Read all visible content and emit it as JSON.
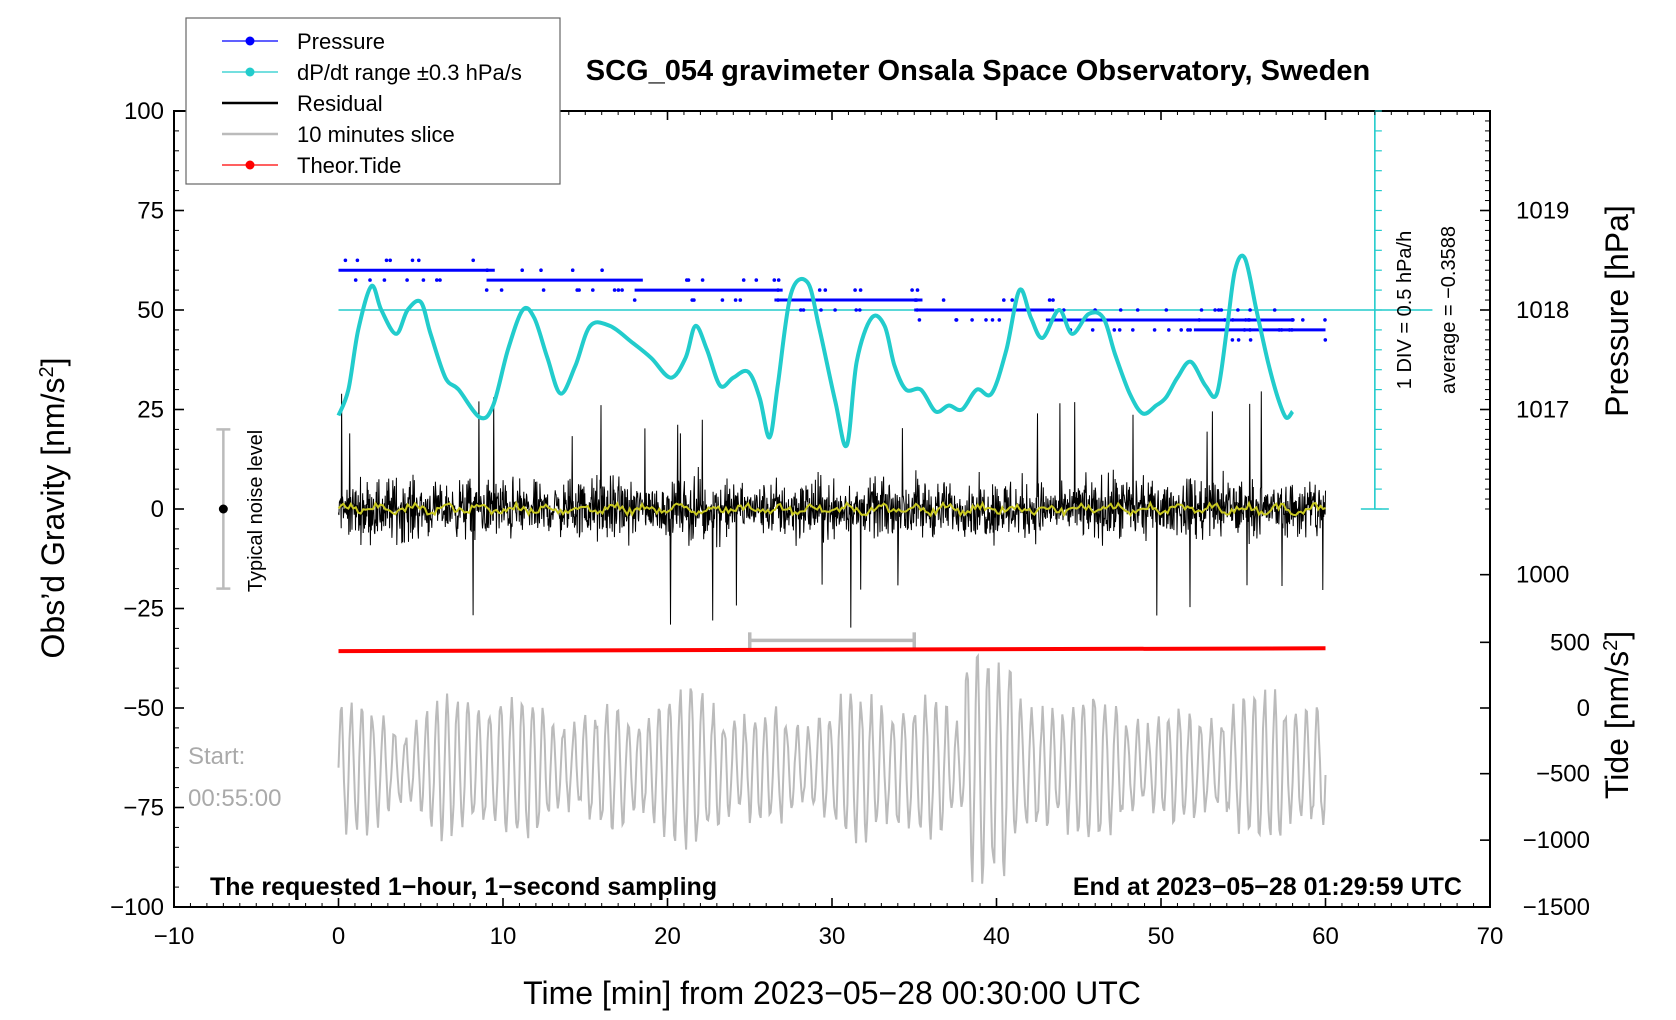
{
  "chart_data": {
    "type": "line",
    "title": "SCG_054 gravimeter Onsala Space Observatory, Sweden",
    "xlabel": "Time [min] from 2023−05−28 00:30:00 UTC",
    "ylabel_left": "Obs’d Gravity [nm/s²]",
    "ylabel_left_main": "Obs’d Gravity [nm/s",
    "ylabel_left_sup": "2",
    "ylabel_left_end": "]",
    "ylabel_right_pressure": "Pressure [hPa]",
    "ylabel_right_tide": "Tide [nm/s²]",
    "ylabel_right_tide_main": "Tide [nm/s",
    "ylabel_right_tide_sup": "2",
    "ylabel_right_tide_end": "]",
    "xlim": [
      -10,
      70
    ],
    "ylim_left": [
      -100,
      100
    ],
    "x_ticks": [
      -10,
      0,
      10,
      20,
      30,
      40,
      50,
      60,
      70
    ],
    "x_tick_labels": [
      "−10",
      "0",
      "10",
      "20",
      "30",
      "40",
      "50",
      "60",
      "70"
    ],
    "y_left_ticks": [
      100,
      75,
      50,
      25,
      0,
      -25,
      -50,
      -75,
      -100
    ],
    "y_left_tick_labels": [
      "100",
      "75",
      "50",
      "25",
      "0",
      "−25",
      "−50",
      "−75",
      "−100"
    ],
    "pressure_ticks": [
      1019,
      1018,
      1017,
      1000
    ],
    "pressure_tick_labels": [
      "1019",
      "1018",
      "1017",
      "1000"
    ],
    "pressure_tick_left_values": [
      75,
      50,
      25,
      -16.5
    ],
    "tide_ticks": [
      500,
      0,
      -500,
      -1000,
      -1500
    ],
    "tide_tick_labels": [
      "500",
      "0",
      "−500",
      "−1000",
      "−1500"
    ],
    "tide_tick_left_values": [
      -33.5,
      -50,
      -66.5,
      -83.2,
      -100
    ],
    "legend": [
      {
        "label": "Pressure",
        "color": "#0000ff",
        "style": "line-dot"
      },
      {
        "label": "dP/dt range ±0.3 hPa/s",
        "color": "#22cccc",
        "style": "line-dot"
      },
      {
        "label": "Residual",
        "color": "#000000",
        "style": "line"
      },
      {
        "label": "10 minutes slice",
        "color": "#bbbbbb",
        "style": "line"
      },
      {
        "label": "Theor.Tide",
        "color": "#ff0000",
        "style": "line-dot"
      }
    ],
    "pressure_steps": [
      {
        "x0": 0,
        "x1": 9.5,
        "y": 60
      },
      {
        "x0": 9,
        "x1": 18.5,
        "y": 57.5
      },
      {
        "x0": 18,
        "x1": 27,
        "y": 55
      },
      {
        "x0": 26.5,
        "x1": 35.5,
        "y": 52.5
      },
      {
        "x0": 35,
        "x1": 43.5,
        "y": 50
      },
      {
        "x0": 43,
        "x1": 52,
        "y": 47.5
      },
      {
        "x0": 51.5,
        "x1": 58,
        "y": 47.5
      },
      {
        "x0": 52,
        "x1": 60,
        "y": 45
      }
    ],
    "dpdt_series": {
      "x": [
        0,
        0.6,
        1.2,
        2,
        2.6,
        3.5,
        4.2,
        5,
        5.6,
        6.5,
        7.3,
        8.6,
        9.4,
        10.3,
        11.2,
        11.9,
        12.7,
        13.5,
        14.4,
        15.3,
        16.5,
        17.8,
        19,
        20.2,
        21.1,
        21.7,
        22.4,
        23.2,
        24,
        24.9,
        25.6,
        26.2,
        26.7,
        27.5,
        28.5,
        29.2,
        30.2,
        30.9,
        31.5,
        32.4,
        33.2,
        33.8,
        34.5,
        35.4,
        36.3,
        37.1,
        37.9,
        38.8,
        39.7,
        40.6,
        41.4,
        42.1,
        42.8,
        43.8,
        44.6,
        45.6,
        46.5,
        47.2,
        48.1,
        48.9,
        49.7,
        50.3,
        51,
        51.8,
        52.7,
        53.4,
        54,
        54.5,
        55.1,
        55.8,
        56.5,
        57.1,
        57.6,
        58
      ],
      "y": [
        23.5,
        30,
        45,
        56,
        50,
        44,
        50,
        52,
        44,
        33,
        30,
        23,
        26,
        40,
        50,
        48,
        38,
        29,
        36,
        46,
        46,
        42,
        38,
        33,
        38,
        46,
        40,
        31,
        33,
        34.5,
        28,
        18,
        31,
        54,
        57,
        46,
        27,
        16,
        37,
        48,
        46,
        36,
        30,
        30,
        24.5,
        26,
        25,
        30,
        29,
        40,
        55,
        48,
        43,
        50,
        44,
        49,
        48,
        39,
        29,
        24,
        26,
        28,
        33,
        37,
        31,
        29,
        45,
        60,
        63,
        50,
        37,
        28,
        23,
        24.5
      ]
    },
    "theor_tide": {
      "x0": 0,
      "x1": 60,
      "y_start": -35.7,
      "y_end": -35.0
    },
    "residual": {
      "x_range": [
        0,
        60
      ],
      "center": 0,
      "typical_amplitude": 10,
      "peak_amplitude": 30
    },
    "residual_smooth": {
      "color": "#c8c820",
      "amplitude": 2
    },
    "slice_marker": {
      "x0": 25,
      "x1": 35,
      "y": -33
    },
    "slice_series": {
      "x_range": [
        0,
        60
      ],
      "center": -65,
      "typical_amplitude": 12,
      "burst_x": [
        38,
        41
      ],
      "burst_amplitude": 30
    },
    "noise_level": {
      "label": "Typical noise level",
      "x": -7,
      "y_center": 0,
      "y_low": -20,
      "y_high": 20
    },
    "scale_bar": {
      "x": 63,
      "y_top": 100,
      "y_bottom": 0,
      "div_step": 5
    },
    "reference_line_y": 50,
    "annotations": {
      "div_label": "1 DIV = 0.5 hPa/h",
      "average_label": "average = −0.3588",
      "start_label": "Start:",
      "start_time": "00:55:00",
      "bottom_left_note": "The requested 1−hour, 1−second sampling",
      "bottom_right_note": "End at 2023−05−28 01:29:59 UTC"
    },
    "colors": {
      "pressure": "#0000ff",
      "dpdt": "#22cccc",
      "residual": "#000000",
      "slice": "#bbbbbb",
      "tide": "#ff0000",
      "noise": "#bbbbbb",
      "start_text": "#aaaaaa"
    }
  }
}
